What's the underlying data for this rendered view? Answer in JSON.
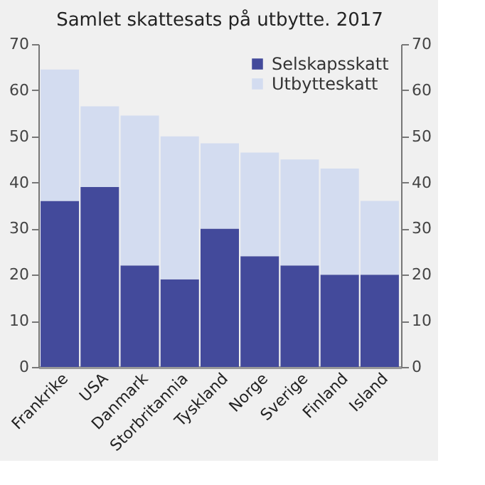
{
  "chart_data": {
    "type": "bar",
    "title": "Samlet skattesats på utbytte. 2017",
    "stacked": true,
    "categories": [
      "Frankrike",
      "USA",
      "Danmark",
      "Storbritannia",
      "Tyskland",
      "Norge",
      "Sverige",
      "Finland",
      "Island"
    ],
    "series": [
      {
        "name": "Selskapsskatt",
        "color": "#434a9b",
        "values": [
          36,
          39,
          22,
          19,
          30,
          24,
          22,
          20,
          20
        ]
      },
      {
        "name": "Utbytteskatt",
        "color": "#d3dcf0",
        "values": [
          28.5,
          17.5,
          32.5,
          31,
          18.5,
          22.5,
          23,
          23,
          16
        ]
      }
    ],
    "ylim": [
      0,
      70
    ],
    "yticks": [
      0,
      10,
      20,
      30,
      40,
      50,
      60,
      70
    ],
    "y2lim": [
      0,
      70
    ],
    "y2ticks": [
      0,
      10,
      20,
      30,
      40,
      50,
      60,
      70
    ],
    "legend": "top right",
    "grid": false
  }
}
